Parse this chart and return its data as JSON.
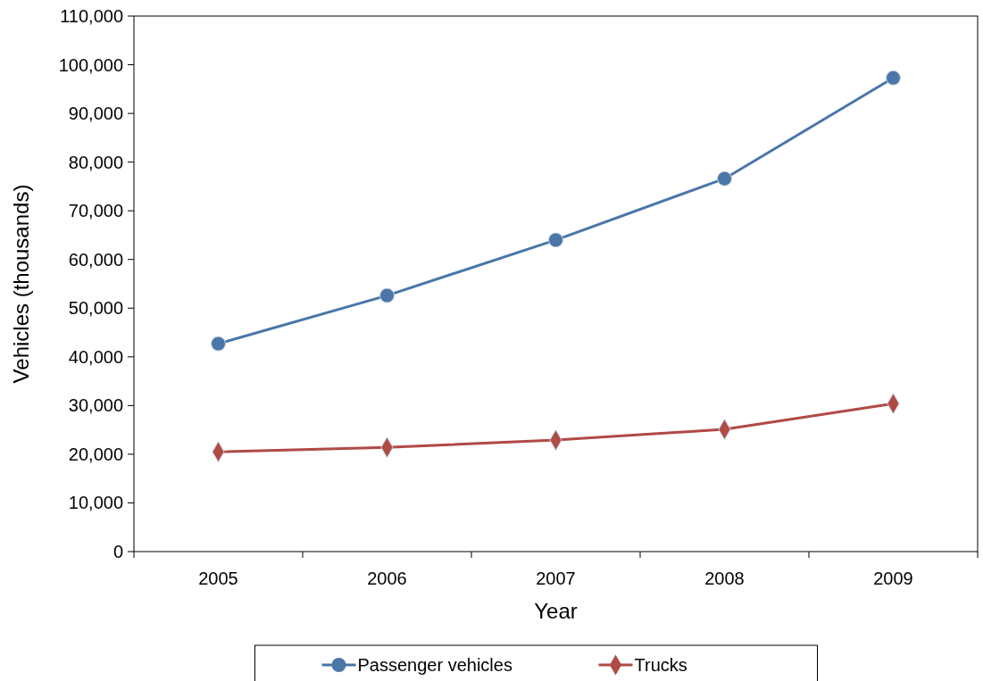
{
  "chart_data": {
    "type": "line",
    "xlabel": "Year",
    "ylabel": "Vehicles (thousands)",
    "categories": [
      "2005",
      "2006",
      "2007",
      "2008",
      "2009"
    ],
    "series": [
      {
        "name": "Passenger vehicles",
        "color": "#4a76a8",
        "marker": "circle",
        "values": [
          42700,
          52600,
          64000,
          76600,
          97300
        ]
      },
      {
        "name": "Trucks",
        "color": "#b04a45",
        "marker": "diamond",
        "values": [
          20500,
          21400,
          22900,
          25100,
          30400
        ]
      }
    ],
    "ylim": [
      0,
      110000
    ],
    "yticks": [
      {
        "value": 0,
        "label": "0"
      },
      {
        "value": 10000,
        "label": "10,000"
      },
      {
        "value": 20000,
        "label": "20,000"
      },
      {
        "value": 30000,
        "label": "30,000"
      },
      {
        "value": 40000,
        "label": "40,000"
      },
      {
        "value": 50000,
        "label": "50,000"
      },
      {
        "value": 60000,
        "label": "60,000"
      },
      {
        "value": 70000,
        "label": "70,000"
      },
      {
        "value": 80000,
        "label": "80,000"
      },
      {
        "value": 90000,
        "label": "90,000"
      },
      {
        "value": 100000,
        "label": "100,000"
      },
      {
        "value": 110000,
        "label": "110,000"
      }
    ],
    "grid": false,
    "legend": "bottom",
    "line_style": "solid"
  }
}
